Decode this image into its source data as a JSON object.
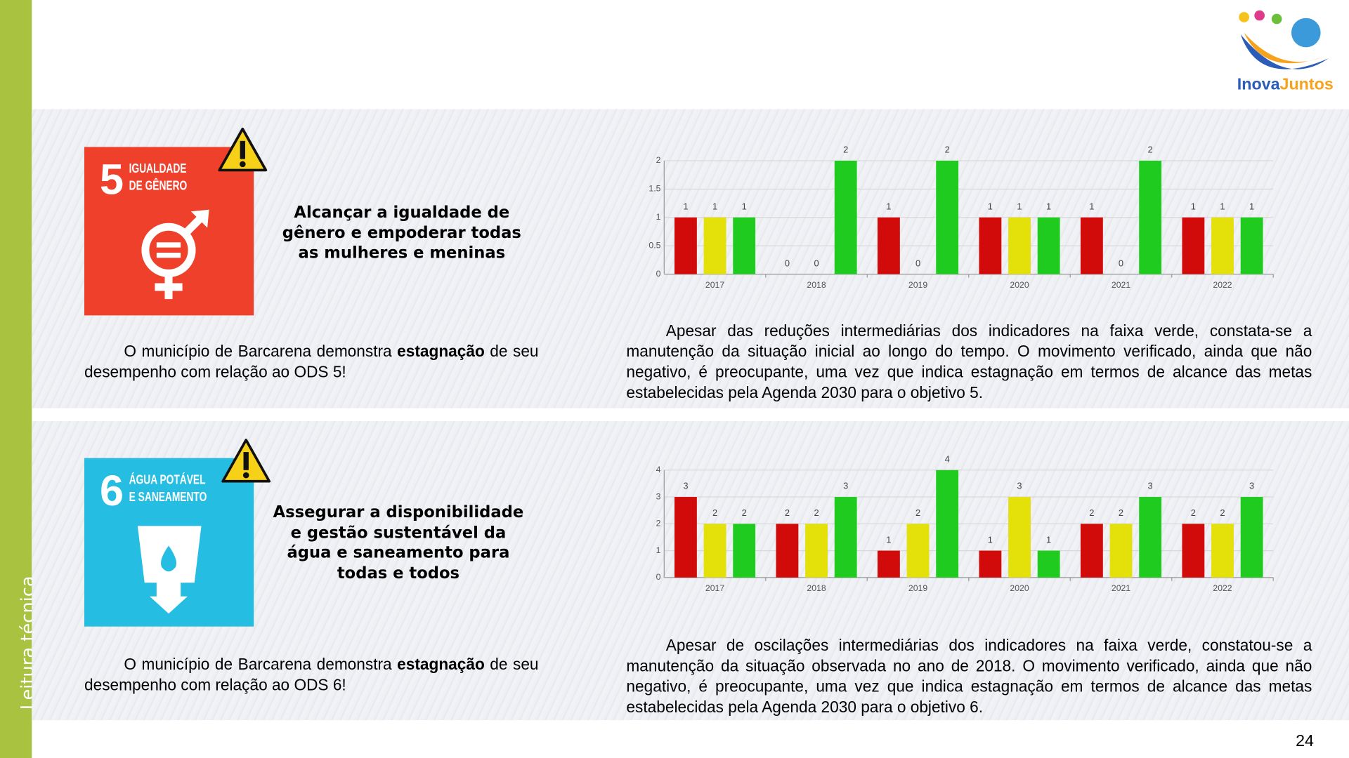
{
  "sidebar": "Leitura técnica",
  "logo": {
    "part1": "Inova",
    "part2": "Juntos"
  },
  "page_number": "24",
  "sections": [
    {
      "sdg_number": "5",
      "sdg_title": [
        "IGUALDADE",
        "DE GÊNERO"
      ],
      "goal": "Alcançar a igualdade de gênero e empoderar todas as mulheres e meninas",
      "summary": [
        "O município de Barcarena demonstra ",
        "estagnação",
        " de seu desempenho com relação ao ODS 5!"
      ],
      "analysis": "Apesar das reduções intermediárias dos indicadores na faixa verde, constata-se a manutenção da situação inicial ao longo do tempo. O movimento verificado, ainda que não negativo, é preocupante, uma vez que indica estagnação em termos de alcance das metas estabelecidas pela Agenda 2030 para o objetivo 5."
    },
    {
      "sdg_number": "6",
      "sdg_title": [
        "ÁGUA POTÁVEL",
        "E SANEAMENTO"
      ],
      "goal": "Assegurar a disponibilidade e gestão sustentável da água e saneamento para todas e todos",
      "summary": [
        "O município de Barcarena demonstra ",
        "estagnação",
        " de seu desempenho com relação ao ODS 6!"
      ],
      "analysis": "Apesar de oscilações intermediárias dos indicadores na faixa verde, constatou-se a manutenção da situação observada no ano de 2018. O movimento verificado, ainda que não negativo, é preocupante, uma vez que indica estagnação em termos de alcance das metas estabelecidas pela Agenda 2030 para o objetivo 6."
    }
  ],
  "chart_data": [
    {
      "type": "bar",
      "categories": [
        "2017",
        "2018",
        "2019",
        "2020",
        "2021",
        "2022"
      ],
      "series": [
        {
          "color": "#d10a0a",
          "values": [
            1,
            0,
            1,
            1,
            1,
            1
          ]
        },
        {
          "color": "#e3e00a",
          "values": [
            1,
            0,
            0,
            1,
            0,
            1
          ]
        },
        {
          "color": "#1fcb1f",
          "values": [
            1,
            2,
            2,
            1,
            2,
            1
          ]
        }
      ],
      "ylim": [
        0,
        2
      ],
      "yticks": [
        0,
        0.5,
        1,
        1.5,
        2
      ],
      "grid": true,
      "data_labels": true
    },
    {
      "type": "bar",
      "categories": [
        "2017",
        "2018",
        "2019",
        "2020",
        "2021",
        "2022"
      ],
      "series": [
        {
          "color": "#d10a0a",
          "values": [
            3,
            2,
            1,
            1,
            2,
            2
          ]
        },
        {
          "color": "#e3e00a",
          "values": [
            2,
            2,
            2,
            3,
            2,
            2
          ]
        },
        {
          "color": "#1fcb1f",
          "values": [
            2,
            3,
            4,
            1,
            3,
            3
          ]
        }
      ],
      "ylim": [
        0,
        4
      ],
      "yticks": [
        0,
        1,
        2,
        3,
        4
      ],
      "grid": true,
      "data_labels": true
    }
  ]
}
